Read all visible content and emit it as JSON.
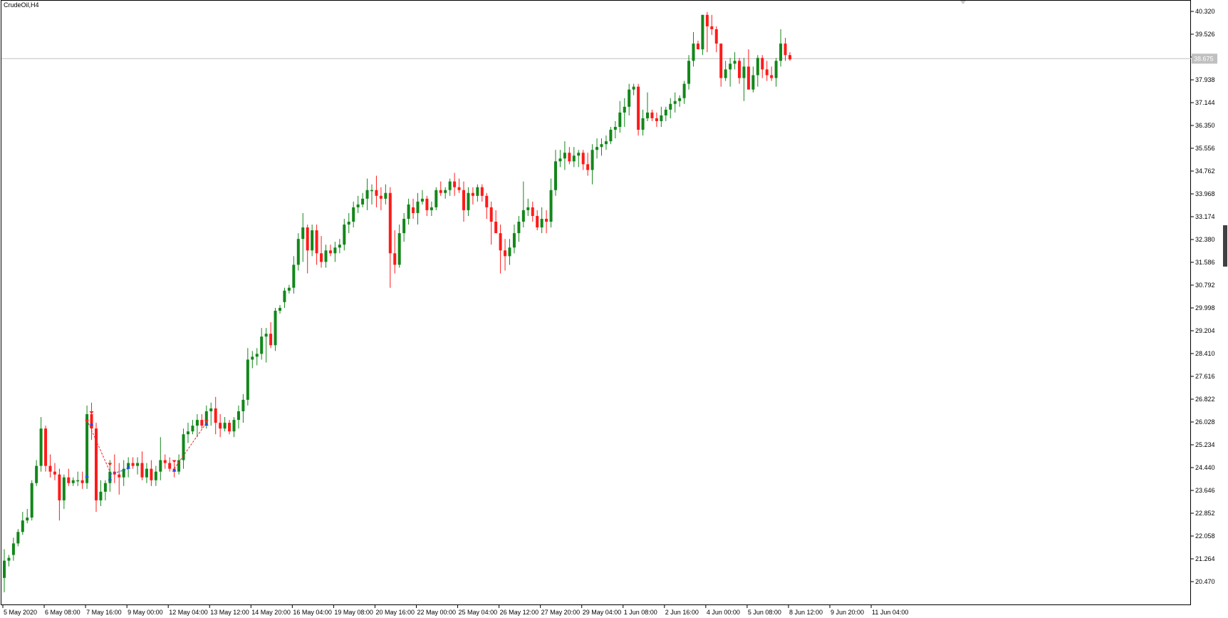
{
  "symbol": {
    "label": "CrudeOil,H4"
  },
  "current_price": "38.675",
  "colors": {
    "bull": "#12871a",
    "bear": "#ff1a1a",
    "axis": "#000000",
    "price_line": "#c0c0c0",
    "price_tag": "#c0c0c0",
    "marker_buy": "#1a4dff",
    "marker_sell": "#ff2020"
  },
  "chart_data": {
    "type": "candlestick",
    "title": "CrudeOil,H4",
    "y_ticks": [
      "40.320",
      "39.526",
      "38.732",
      "37.938",
      "37.144",
      "36.350",
      "35.556",
      "34.762",
      "33.968",
      "33.174",
      "32.380",
      "31.586",
      "30.792",
      "29.998",
      "29.204",
      "28.410",
      "27.616",
      "26.822",
      "26.028",
      "25.234",
      "24.440",
      "23.646",
      "22.852",
      "22.058",
      "21.264",
      "20.470"
    ],
    "x_ticks": [
      "5 May 2020",
      "6 May 08:00",
      "7 May 16:00",
      "9 May 00:00",
      "12 May 04:00",
      "13 May 12:00",
      "14 May 20:00",
      "16 May 04:00",
      "19 May 08:00",
      "20 May 16:00",
      "22 May 00:00",
      "25 May 04:00",
      "26 May 12:00",
      "27 May 20:00",
      "29 May 04:00",
      "1 Jun 08:00",
      "2 Jun 16:00",
      "4 Jun 00:00",
      "5 Jun 08:00",
      "8 Jun 12:00",
      "9 Jun 20:00",
      "11 Jun 04:00"
    ],
    "ylim": [
      20.0,
      40.6
    ],
    "grid": false,
    "legend": "none",
    "candles": [
      [
        20.6,
        21.6,
        20.1,
        21.2
      ],
      [
        21.2,
        21.4,
        21.0,
        21.3
      ],
      [
        21.4,
        22.0,
        21.2,
        21.8
      ],
      [
        21.8,
        22.3,
        21.7,
        22.2
      ],
      [
        22.2,
        22.9,
        22.1,
        22.6
      ],
      [
        22.6,
        23.0,
        22.5,
        22.7
      ],
      [
        22.7,
        24.0,
        22.6,
        23.9
      ],
      [
        23.9,
        24.7,
        23.8,
        24.5
      ],
      [
        24.5,
        26.2,
        24.3,
        25.8
      ],
      [
        25.8,
        25.9,
        24.3,
        24.5
      ],
      [
        24.5,
        24.9,
        24.1,
        24.3
      ],
      [
        24.3,
        24.6,
        24.0,
        24.2
      ],
      [
        24.2,
        24.4,
        22.6,
        23.3
      ],
      [
        23.3,
        24.2,
        23.0,
        24.1
      ],
      [
        24.1,
        24.4,
        23.8,
        23.9
      ],
      [
        23.9,
        24.1,
        23.8,
        24.0
      ],
      [
        24.0,
        24.3,
        23.8,
        24.0
      ],
      [
        24.0,
        24.3,
        23.7,
        23.9
      ],
      [
        23.9,
        26.6,
        23.7,
        26.3
      ],
      [
        26.3,
        26.7,
        25.4,
        25.8
      ],
      [
        25.8,
        26.0,
        22.9,
        23.3
      ],
      [
        23.3,
        24.0,
        23.1,
        23.6
      ],
      [
        23.6,
        24.0,
        23.3,
        23.9
      ],
      [
        23.9,
        24.7,
        23.6,
        24.3
      ],
      [
        24.3,
        24.9,
        23.9,
        24.2
      ],
      [
        24.2,
        24.6,
        23.5,
        24.1
      ],
      [
        24.1,
        24.7,
        23.8,
        24.4
      ],
      [
        24.4,
        24.8,
        24.1,
        24.6
      ],
      [
        24.6,
        24.8,
        24.4,
        24.5
      ],
      [
        24.5,
        24.8,
        24.2,
        24.6
      ],
      [
        24.6,
        25.0,
        24.0,
        24.1
      ],
      [
        24.1,
        24.6,
        23.9,
        24.4
      ],
      [
        24.4,
        24.7,
        23.8,
        24.0
      ],
      [
        24.0,
        24.5,
        23.8,
        24.3
      ],
      [
        24.3,
        25.5,
        24.0,
        24.7
      ],
      [
        24.7,
        24.9,
        24.4,
        24.6
      ],
      [
        24.6,
        24.8,
        24.3,
        24.4
      ],
      [
        24.4,
        24.6,
        24.1,
        24.3
      ],
      [
        24.3,
        24.9,
        24.2,
        24.7
      ],
      [
        24.7,
        25.8,
        24.4,
        25.6
      ],
      [
        25.6,
        26.0,
        25.3,
        25.7
      ],
      [
        25.7,
        26.1,
        25.6,
        25.9
      ],
      [
        25.9,
        26.3,
        25.5,
        26.1
      ],
      [
        26.1,
        26.3,
        25.8,
        25.9
      ],
      [
        25.9,
        26.6,
        25.8,
        26.4
      ],
      [
        26.4,
        26.7,
        25.9,
        26.5
      ],
      [
        26.5,
        26.9,
        25.6,
        26.0
      ],
      [
        26.0,
        26.3,
        25.5,
        25.8
      ],
      [
        25.8,
        26.2,
        25.7,
        26.0
      ],
      [
        26.0,
        26.1,
        25.6,
        25.7
      ],
      [
        25.7,
        26.2,
        25.5,
        26.1
      ],
      [
        26.1,
        26.6,
        25.8,
        26.4
      ],
      [
        26.4,
        27.0,
        26.0,
        26.8
      ],
      [
        26.8,
        28.6,
        26.6,
        28.2
      ],
      [
        28.2,
        28.5,
        27.9,
        28.3
      ],
      [
        28.3,
        28.6,
        28.0,
        28.4
      ],
      [
        28.4,
        29.3,
        28.2,
        29.0
      ],
      [
        29.0,
        29.3,
        28.1,
        29.1
      ],
      [
        29.1,
        29.5,
        28.6,
        28.7
      ],
      [
        28.7,
        30.0,
        28.5,
        29.9
      ],
      [
        29.9,
        30.1,
        29.8,
        30.0
      ],
      [
        30.2,
        30.7,
        30.0,
        30.6
      ],
      [
        30.6,
        30.8,
        30.5,
        30.7
      ],
      [
        30.7,
        31.8,
        30.5,
        31.5
      ],
      [
        31.5,
        32.6,
        31.3,
        32.4
      ],
      [
        32.4,
        33.3,
        31.6,
        32.8
      ],
      [
        32.8,
        32.9,
        31.2,
        32.0
      ],
      [
        32.0,
        32.9,
        31.8,
        32.7
      ],
      [
        32.7,
        32.9,
        31.5,
        31.9
      ],
      [
        31.9,
        32.5,
        31.4,
        31.6
      ],
      [
        31.6,
        32.2,
        31.4,
        32.0
      ],
      [
        32.0,
        32.2,
        31.8,
        31.9
      ],
      [
        31.9,
        32.3,
        31.6,
        32.1
      ],
      [
        32.1,
        32.4,
        31.9,
        32.2
      ],
      [
        32.2,
        33.1,
        32.0,
        32.9
      ],
      [
        32.9,
        33.3,
        32.6,
        33.0
      ],
      [
        33.0,
        33.7,
        32.8,
        33.5
      ],
      [
        33.5,
        33.9,
        33.3,
        33.6
      ],
      [
        33.6,
        34.0,
        33.5,
        33.8
      ],
      [
        33.8,
        34.5,
        33.4,
        34.1
      ],
      [
        34.1,
        34.3,
        33.6,
        34.1
      ],
      [
        34.1,
        34.6,
        33.5,
        33.9
      ],
      [
        33.9,
        34.2,
        33.4,
        33.8
      ],
      [
        33.8,
        34.3,
        33.6,
        34.0
      ],
      [
        34.0,
        34.2,
        30.7,
        31.9
      ],
      [
        31.9,
        32.7,
        31.2,
        31.5
      ],
      [
        31.5,
        32.9,
        31.4,
        32.6
      ],
      [
        32.6,
        33.3,
        32.3,
        33.1
      ],
      [
        33.1,
        33.8,
        32.9,
        33.6
      ],
      [
        33.5,
        33.8,
        33.1,
        33.3
      ],
      [
        33.3,
        34.0,
        32.9,
        33.7
      ],
      [
        33.7,
        34.1,
        33.6,
        33.8
      ],
      [
        33.8,
        33.9,
        33.2,
        33.4
      ],
      [
        33.4,
        33.7,
        33.2,
        33.5
      ],
      [
        33.5,
        34.2,
        33.4,
        34.1
      ],
      [
        34.1,
        34.4,
        33.9,
        34.0
      ],
      [
        34.0,
        34.2,
        33.8,
        34.1
      ],
      [
        34.1,
        34.5,
        33.9,
        34.4
      ],
      [
        34.4,
        34.7,
        33.9,
        34.2
      ],
      [
        34.2,
        34.5,
        34.0,
        34.1
      ],
      [
        34.1,
        34.4,
        33.0,
        33.4
      ],
      [
        33.4,
        34.2,
        33.2,
        34.0
      ],
      [
        34.0,
        34.2,
        33.6,
        33.9
      ],
      [
        33.9,
        34.3,
        33.7,
        34.2
      ],
      [
        34.2,
        34.3,
        33.7,
        33.9
      ],
      [
        33.9,
        34.0,
        33.1,
        33.5
      ],
      [
        33.5,
        33.7,
        32.2,
        33.0
      ],
      [
        33.0,
        33.4,
        32.6,
        32.6
      ],
      [
        32.6,
        32.9,
        31.2,
        32.0
      ],
      [
        32.0,
        32.4,
        31.3,
        31.8
      ],
      [
        31.8,
        32.4,
        31.5,
        32.1
      ],
      [
        32.1,
        32.9,
        31.9,
        32.6
      ],
      [
        32.6,
        33.2,
        32.3,
        33.0
      ],
      [
        33.0,
        34.4,
        32.8,
        33.4
      ],
      [
        33.4,
        33.8,
        33.2,
        33.5
      ],
      [
        33.5,
        33.7,
        33.0,
        33.2
      ],
      [
        33.2,
        33.4,
        32.7,
        32.8
      ],
      [
        32.8,
        33.5,
        32.6,
        33.1
      ],
      [
        33.1,
        33.4,
        32.6,
        33.0
      ],
      [
        33.0,
        34.5,
        32.8,
        34.1
      ],
      [
        34.1,
        35.5,
        33.9,
        35.1
      ],
      [
        35.1,
        35.5,
        34.9,
        35.2
      ],
      [
        35.2,
        35.8,
        34.8,
        35.4
      ],
      [
        35.4,
        35.6,
        35.0,
        35.1
      ],
      [
        35.1,
        35.6,
        34.9,
        35.3
      ],
      [
        35.3,
        35.5,
        34.9,
        35.4
      ],
      [
        35.4,
        35.5,
        34.8,
        35.0
      ],
      [
        35.0,
        35.4,
        34.6,
        34.8
      ],
      [
        34.8,
        35.7,
        34.3,
        35.5
      ],
      [
        35.5,
        35.9,
        35.2,
        35.6
      ],
      [
        35.6,
        35.9,
        35.3,
        35.7
      ],
      [
        35.7,
        36.0,
        35.5,
        35.8
      ],
      [
        35.8,
        36.3,
        35.7,
        36.2
      ],
      [
        36.2,
        36.5,
        35.9,
        36.3
      ],
      [
        36.3,
        37.2,
        36.1,
        36.8
      ],
      [
        36.8,
        37.3,
        36.3,
        37.0
      ],
      [
        37.0,
        37.8,
        36.7,
        37.6
      ],
      [
        37.6,
        37.8,
        37.4,
        37.7
      ],
      [
        37.7,
        37.8,
        36.0,
        36.2
      ],
      [
        36.2,
        36.9,
        36.0,
        36.6
      ],
      [
        36.6,
        37.5,
        36.5,
        36.8
      ],
      [
        36.8,
        36.9,
        36.5,
        36.6
      ],
      [
        36.6,
        36.8,
        36.3,
        36.5
      ],
      [
        36.5,
        37.0,
        36.3,
        36.7
      ],
      [
        36.7,
        37.0,
        36.5,
        36.9
      ],
      [
        36.9,
        37.3,
        36.6,
        37.1
      ],
      [
        37.1,
        37.5,
        36.8,
        37.2
      ],
      [
        37.2,
        37.4,
        37.0,
        37.3
      ],
      [
        37.3,
        37.9,
        37.1,
        37.8
      ],
      [
        37.8,
        38.8,
        37.6,
        38.6
      ],
      [
        38.6,
        39.6,
        38.4,
        39.2
      ],
      [
        39.2,
        39.3,
        39.0,
        39.0
      ],
      [
        39.0,
        40.2,
        38.8,
        40.2
      ],
      [
        40.2,
        40.3,
        38.9,
        39.8
      ],
      [
        39.8,
        40.2,
        39.5,
        39.7
      ],
      [
        39.7,
        39.8,
        38.9,
        39.2
      ],
      [
        39.2,
        39.2,
        37.7,
        38.0
      ],
      [
        38.0,
        38.6,
        37.9,
        38.3
      ],
      [
        38.3,
        38.7,
        37.7,
        38.5
      ],
      [
        38.5,
        38.9,
        38.3,
        38.6
      ],
      [
        38.6,
        38.7,
        37.8,
        38.0
      ],
      [
        38.0,
        38.7,
        37.2,
        38.4
      ],
      [
        38.4,
        39.0,
        37.6,
        37.6
      ],
      [
        37.6,
        38.4,
        37.5,
        38.1
      ],
      [
        38.1,
        38.8,
        37.7,
        38.7
      ],
      [
        38.7,
        38.8,
        38.0,
        38.3
      ],
      [
        38.3,
        38.6,
        37.9,
        38.1
      ],
      [
        38.1,
        38.4,
        37.9,
        38.0
      ],
      [
        38.0,
        38.7,
        37.7,
        38.6
      ],
      [
        38.6,
        39.7,
        38.4,
        39.2
      ],
      [
        39.2,
        39.4,
        38.6,
        38.8
      ],
      [
        38.8,
        38.9,
        38.6,
        38.7
      ]
    ]
  }
}
